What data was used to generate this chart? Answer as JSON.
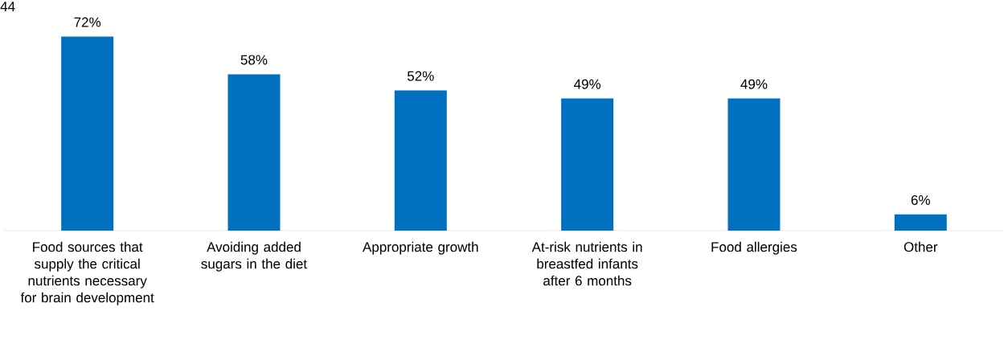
{
  "chart_data": {
    "type": "bar",
    "categories": [
      "Food sources that supply the critical nutrients necessary for brain development",
      "Avoiding added sugars in the diet",
      "Appropriate growth",
      "At-risk nutrients in breastfed infants after 6 months",
      "Food allergies",
      "Other"
    ],
    "values": [
      72,
      58,
      52,
      49,
      49,
      6
    ],
    "value_labels": [
      "72%",
      "58%",
      "52%",
      "49%",
      "49%",
      "6%"
    ],
    "color": "#0070c0",
    "annotations": [
      "44"
    ]
  }
}
